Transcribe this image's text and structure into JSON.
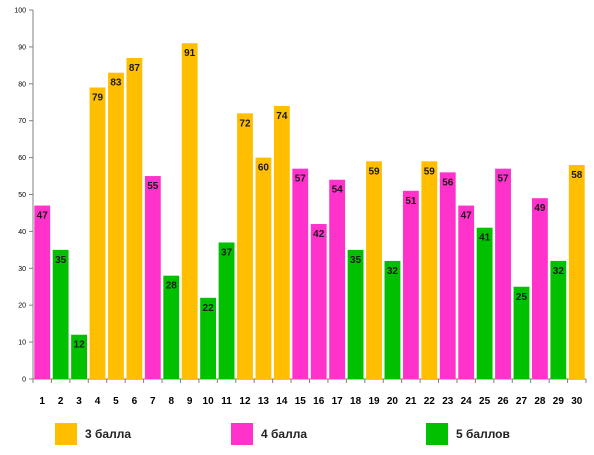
{
  "chart_data": {
    "type": "bar",
    "categories": [
      "1",
      "2",
      "3",
      "4",
      "5",
      "6",
      "7",
      "8",
      "9",
      "10",
      "11",
      "12",
      "13",
      "14",
      "15",
      "16",
      "17",
      "18",
      "19",
      "20",
      "21",
      "22",
      "23",
      "24",
      "25",
      "26",
      "27",
      "28",
      "29",
      "30"
    ],
    "values": [
      47,
      35,
      12,
      79,
      83,
      87,
      55,
      28,
      91,
      22,
      37,
      72,
      60,
      74,
      57,
      42,
      54,
      35,
      59,
      32,
      51,
      59,
      56,
      47,
      41,
      57,
      25,
      49,
      32,
      58
    ],
    "groups": [
      "4 балла",
      "5 баллов",
      "5 баллов",
      "3 балла",
      "3 балла",
      "3 балла",
      "4 балла",
      "5 баллов",
      "3 балла",
      "5 баллов",
      "5 баллов",
      "3 балла",
      "3 балла",
      "3 балла",
      "4 балла",
      "4 балла",
      "4 балла",
      "5 баллов",
      "3 балла",
      "5 баллов",
      "4 балла",
      "3 балла",
      "4 балла",
      "4 балла",
      "5 баллов",
      "4 балла",
      "5 баллов",
      "4 балла",
      "5 баллов",
      "3 балла"
    ],
    "ylim": [
      0,
      100
    ],
    "yticks": [
      0,
      10,
      20,
      30,
      40,
      50,
      60,
      70,
      80,
      90,
      100
    ],
    "grid": false,
    "legend": {
      "placement": "bottom",
      "items": [
        {
          "name": "3 балла",
          "color": "#FFBF00"
        },
        {
          "name": "4 балла",
          "color": "#FF33CC"
        },
        {
          "name": "5 баллов",
          "color": "#00C000"
        }
      ]
    }
  }
}
